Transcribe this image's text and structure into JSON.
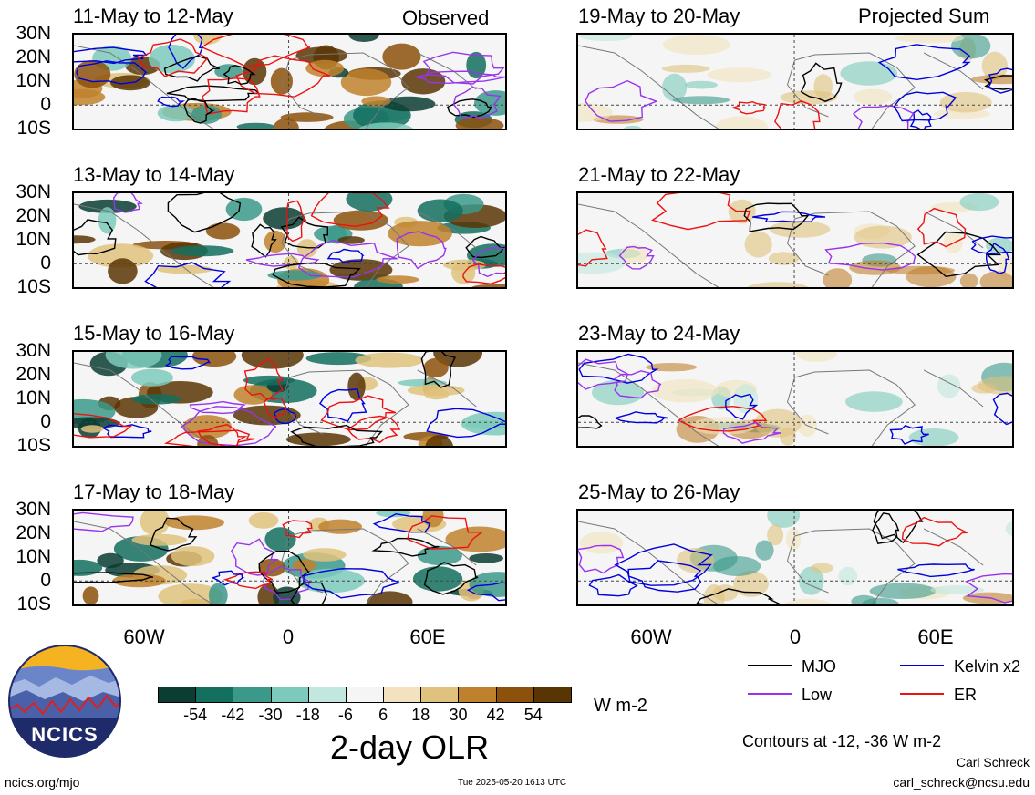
{
  "panels": {
    "observed": [
      {
        "title": "11-May to 12-May",
        "tag": "Observed"
      },
      {
        "title": "13-May to 14-May",
        "tag": ""
      },
      {
        "title": "15-May to 16-May",
        "tag": ""
      },
      {
        "title": "17-May to 18-May",
        "tag": ""
      }
    ],
    "projected": [
      {
        "title": "19-May to 20-May",
        "tag": "Projected Sum"
      },
      {
        "title": "21-May to 22-May",
        "tag": ""
      },
      {
        "title": "23-May to 24-May",
        "tag": ""
      },
      {
        "title": "25-May to 26-May",
        "tag": ""
      }
    ]
  },
  "lat_labels": [
    "30N",
    "20N",
    "10N",
    "0",
    "10S"
  ],
  "lon_labels": [
    "60W",
    "0",
    "60E"
  ],
  "colorbar": {
    "title": "2-day OLR",
    "units": "W m-2",
    "ticks": [
      "-54",
      "-42",
      "-30",
      "-18",
      "-6",
      "6",
      "18",
      "30",
      "42",
      "54"
    ],
    "colors": [
      "#0b3d33",
      "#136f5e",
      "#3b998a",
      "#7ccabb",
      "#c2e7de",
      "#f5f5f5",
      "#f2e2bd",
      "#dfc27d",
      "#bf812d",
      "#8c510a",
      "#5a3504"
    ]
  },
  "legend": {
    "mjo": {
      "label": "MJO",
      "color": "#000000"
    },
    "kelvin": {
      "label": "Kelvin x2",
      "color": "#0000dd"
    },
    "low": {
      "label": "Low",
      "color": "#9933ee"
    },
    "er": {
      "label": "ER",
      "color": "#ee1111"
    }
  },
  "contours_note": "Contours at -12, -36 W m-2",
  "logo_text": "NCICS",
  "footer": {
    "left": "ncics.org/mjo",
    "center": "Tue 2025-05-20 1613 UTC",
    "author": "Carl Schreck",
    "email": "carl_schreck@ncsu.edu"
  }
}
